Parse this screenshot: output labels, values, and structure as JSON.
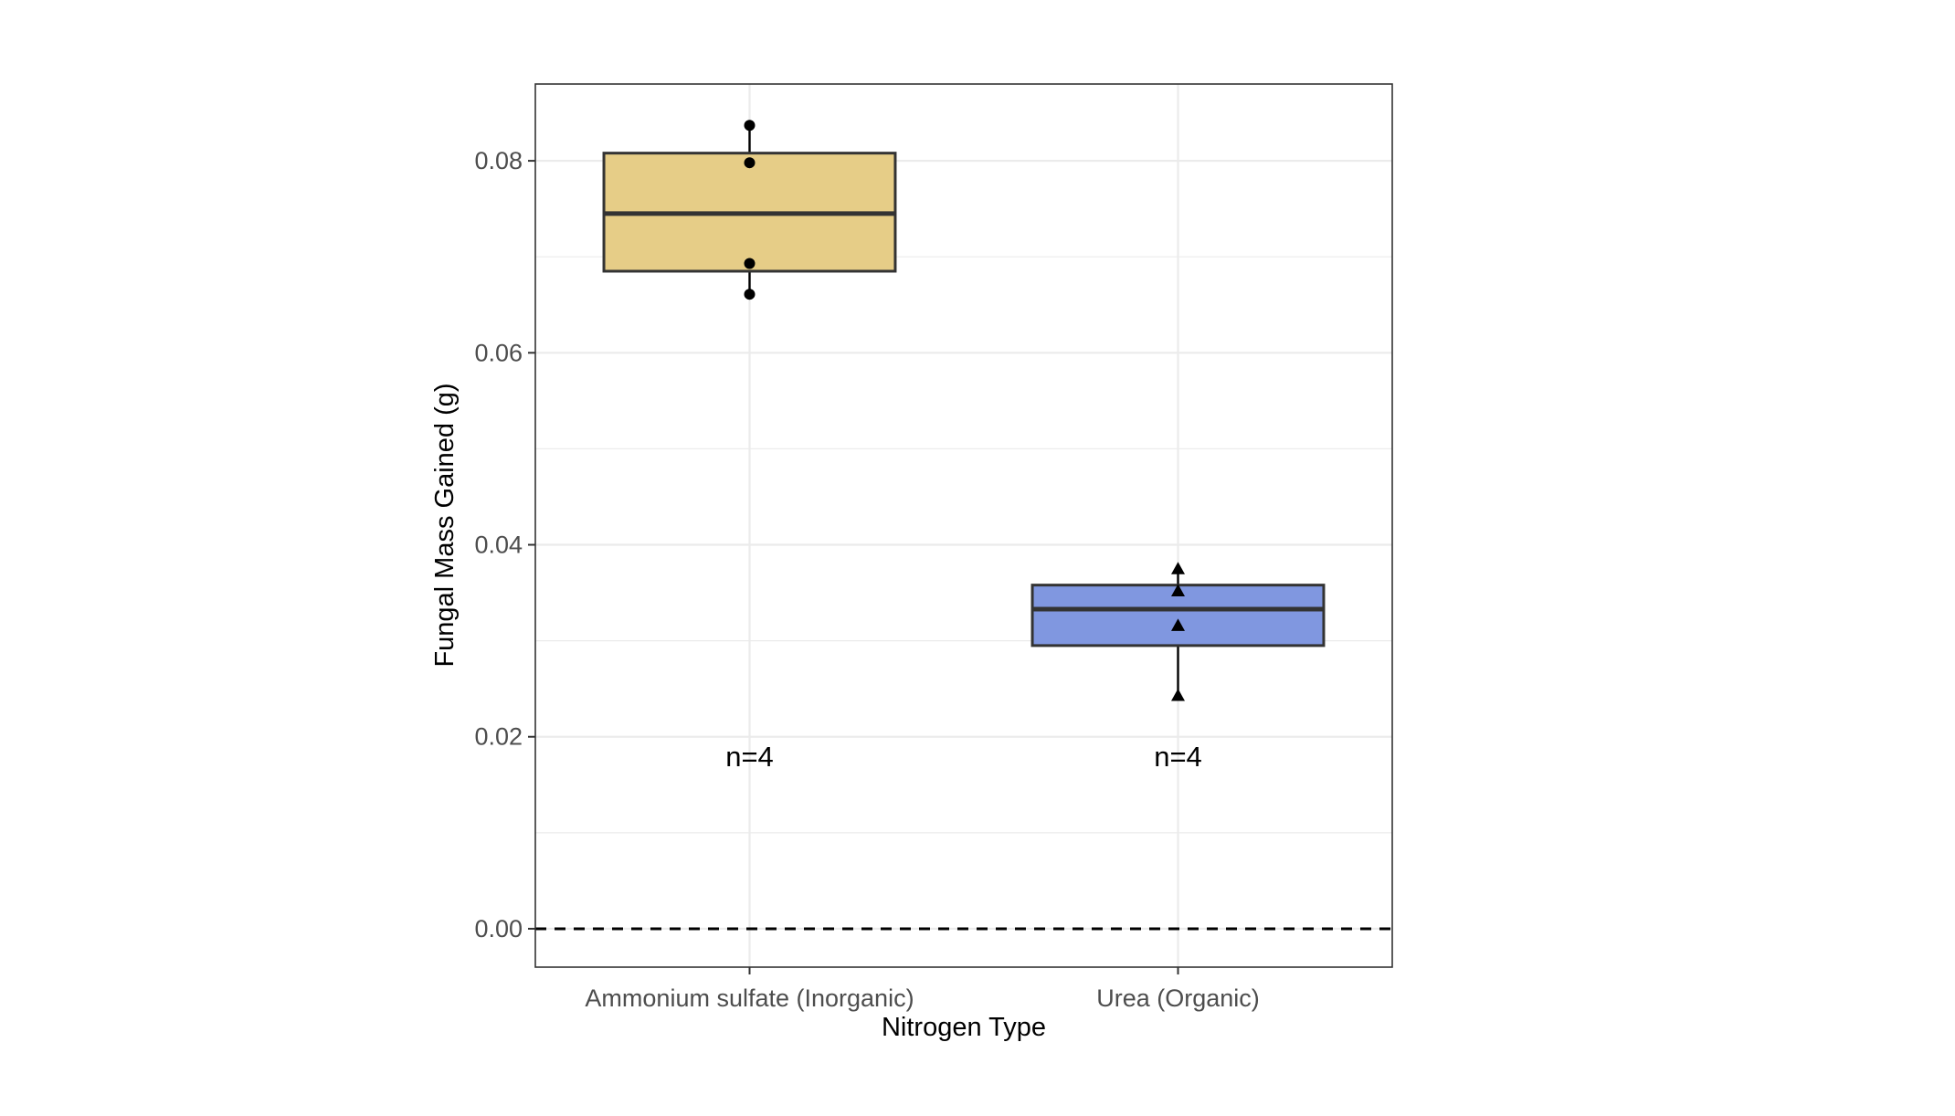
{
  "chart_data": {
    "type": "box",
    "xlabel": "Nitrogen Type",
    "ylabel": "Fungal Mass Gained (g)",
    "ylim": [
      -0.004,
      0.088
    ],
    "yticks": [
      0.0,
      0.02,
      0.04,
      0.06,
      0.08
    ],
    "ytick_labels": [
      "0.00",
      "0.02",
      "0.04",
      "0.06",
      "0.08"
    ],
    "categories": [
      "Ammonium sulfate (Inorganic)",
      "Urea (Organic)"
    ],
    "grid": true,
    "reference_line": {
      "y": 0.0,
      "style": "dashed"
    },
    "groups": [
      {
        "category": "Ammonium sulfate (Inorganic)",
        "fill": "#E6CD87",
        "marker": "circle",
        "q1": 0.0685,
        "median": 0.0745,
        "q3": 0.0808,
        "whisker_low": 0.0661,
        "whisker_high": 0.0837,
        "points": [
          0.0837,
          0.0798,
          0.0693,
          0.0661
        ],
        "annotation": "n=4"
      },
      {
        "category": "Urea (Organic)",
        "fill": "#8097E0",
        "marker": "triangle",
        "q1": 0.0295,
        "median": 0.0333,
        "q3": 0.0358,
        "whisker_low": 0.0243,
        "whisker_high": 0.0375,
        "points": [
          0.0375,
          0.0352,
          0.0316,
          0.0243
        ],
        "annotation": "n=4"
      }
    ],
    "annotation_y": 0.018,
    "colors": {
      "box_outline": "#333333",
      "grid": "#ebebeb",
      "panel_border": "#333333"
    }
  }
}
